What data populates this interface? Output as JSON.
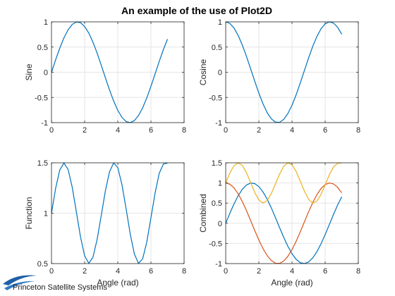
{
  "figure": {
    "title": "An example of the use of Plot2D",
    "logo_text": "Princeton Satellite Systems"
  },
  "colors": {
    "blue": "#0072BD",
    "orange": "#D95319",
    "yellow": "#EDB120",
    "grid": "#e6e6e6",
    "axis": "#262626"
  },
  "chart_data": [
    {
      "type": "line",
      "ylabel": "Sine",
      "xlabel": "",
      "xlim": [
        0,
        8
      ],
      "ylim": [
        -1,
        1
      ],
      "xticks": [
        0,
        2,
        4,
        6,
        8
      ],
      "yticks": [
        -1,
        -0.5,
        0,
        0.5,
        1
      ],
      "grid": true,
      "x": [
        0,
        0.25,
        0.5,
        0.75,
        1,
        1.25,
        1.5,
        1.75,
        2,
        2.25,
        2.5,
        2.75,
        3,
        3.25,
        3.5,
        3.75,
        4,
        4.25,
        4.5,
        4.75,
        5,
        5.25,
        5.5,
        5.75,
        6,
        6.25,
        6.5,
        6.75,
        7
      ],
      "series": [
        {
          "color": "blue",
          "y": [
            0,
            0.247,
            0.479,
            0.682,
            0.841,
            0.949,
            0.997,
            0.984,
            0.909,
            0.778,
            0.598,
            0.382,
            0.141,
            -0.108,
            -0.351,
            -0.572,
            -0.757,
            -0.895,
            -0.978,
            -0.999,
            -0.959,
            -0.859,
            -0.706,
            -0.508,
            -0.279,
            -0.033,
            0.215,
            0.451,
            0.657
          ]
        }
      ]
    },
    {
      "type": "line",
      "ylabel": "Cosine",
      "xlabel": "",
      "xlim": [
        0,
        8
      ],
      "ylim": [
        -1,
        1
      ],
      "xticks": [
        0,
        2,
        4,
        6,
        8
      ],
      "yticks": [
        -1,
        -0.5,
        0,
        0.5,
        1
      ],
      "grid": true,
      "x": [
        0,
        0.25,
        0.5,
        0.75,
        1,
        1.25,
        1.5,
        1.75,
        2,
        2.25,
        2.5,
        2.75,
        3,
        3.25,
        3.5,
        3.75,
        4,
        4.25,
        4.5,
        4.75,
        5,
        5.25,
        5.5,
        5.75,
        6,
        6.25,
        6.5,
        6.75,
        7
      ],
      "series": [
        {
          "color": "blue",
          "y": [
            1,
            0.969,
            0.878,
            0.732,
            0.54,
            0.315,
            0.071,
            -0.178,
            -0.416,
            -0.628,
            -0.801,
            -0.924,
            -0.99,
            -0.994,
            -0.936,
            -0.82,
            -0.654,
            -0.446,
            -0.211,
            0.038,
            0.284,
            0.512,
            0.709,
            0.862,
            0.96,
            0.999,
            0.977,
            0.893,
            0.754
          ]
        }
      ]
    },
    {
      "type": "line",
      "ylabel": "Function",
      "xlabel": "Angle (rad)",
      "xlim": [
        0,
        8
      ],
      "ylim": [
        0.5,
        1.5
      ],
      "xticks": [
        0,
        2,
        4,
        6,
        8
      ],
      "yticks": [
        0.5,
        1,
        1.5
      ],
      "grid": true,
      "x": [
        0,
        0.25,
        0.5,
        0.75,
        1,
        1.25,
        1.5,
        1.75,
        2,
        2.25,
        2.5,
        2.75,
        3,
        3.25,
        3.5,
        3.75,
        4,
        4.25,
        4.5,
        4.75,
        5,
        5.25,
        5.5,
        5.75,
        6,
        6.25,
        6.5,
        6.75,
        7
      ],
      "series": [
        {
          "color": "blue",
          "y": [
            1,
            1.247,
            1.43,
            1.497,
            1.436,
            1.258,
            1.012,
            0.765,
            0.577,
            0.503,
            0.562,
            0.738,
            0.975,
            1.221,
            1.411,
            1.499,
            1.453,
            1.284,
            1.045,
            0.794,
            0.595,
            0.502,
            0.547,
            0.715,
            0.955,
            1.2,
            1.396,
            1.488,
            1.497
          ]
        }
      ]
    },
    {
      "type": "line",
      "ylabel": "Combined",
      "xlabel": "Angle (rad)",
      "xlim": [
        0,
        8
      ],
      "ylim": [
        -1,
        1.5
      ],
      "xticks": [
        0,
        2,
        4,
        6,
        8
      ],
      "yticks": [
        -1,
        -0.5,
        0,
        0.5,
        1,
        1.5
      ],
      "grid": true,
      "x": [
        0,
        0.25,
        0.5,
        0.75,
        1,
        1.25,
        1.5,
        1.75,
        2,
        2.25,
        2.5,
        2.75,
        3,
        3.25,
        3.5,
        3.75,
        4,
        4.25,
        4.5,
        4.75,
        5,
        5.25,
        5.5,
        5.75,
        6,
        6.25,
        6.5,
        6.75,
        7
      ],
      "series": [
        {
          "color": "blue",
          "y": [
            0,
            0.247,
            0.479,
            0.682,
            0.841,
            0.949,
            0.997,
            0.984,
            0.909,
            0.778,
            0.598,
            0.382,
            0.141,
            -0.108,
            -0.351,
            -0.572,
            -0.757,
            -0.895,
            -0.978,
            -0.999,
            -0.959,
            -0.859,
            -0.706,
            -0.508,
            -0.279,
            -0.033,
            0.215,
            0.451,
            0.657
          ]
        },
        {
          "color": "orange",
          "y": [
            1,
            0.969,
            0.878,
            0.732,
            0.54,
            0.315,
            0.071,
            -0.178,
            -0.416,
            -0.628,
            -0.801,
            -0.924,
            -0.99,
            -0.994,
            -0.936,
            -0.82,
            -0.654,
            -0.446,
            -0.211,
            0.038,
            0.284,
            0.512,
            0.709,
            0.862,
            0.96,
            0.999,
            0.977,
            0.893,
            0.754
          ]
        },
        {
          "color": "yellow",
          "y": [
            1,
            1.247,
            1.43,
            1.497,
            1.436,
            1.258,
            1.012,
            0.765,
            0.577,
            0.503,
            0.562,
            0.738,
            0.975,
            1.221,
            1.411,
            1.499,
            1.453,
            1.284,
            1.045,
            0.794,
            0.595,
            0.502,
            0.547,
            0.715,
            0.955,
            1.2,
            1.396,
            1.488,
            1.497
          ]
        }
      ]
    }
  ]
}
